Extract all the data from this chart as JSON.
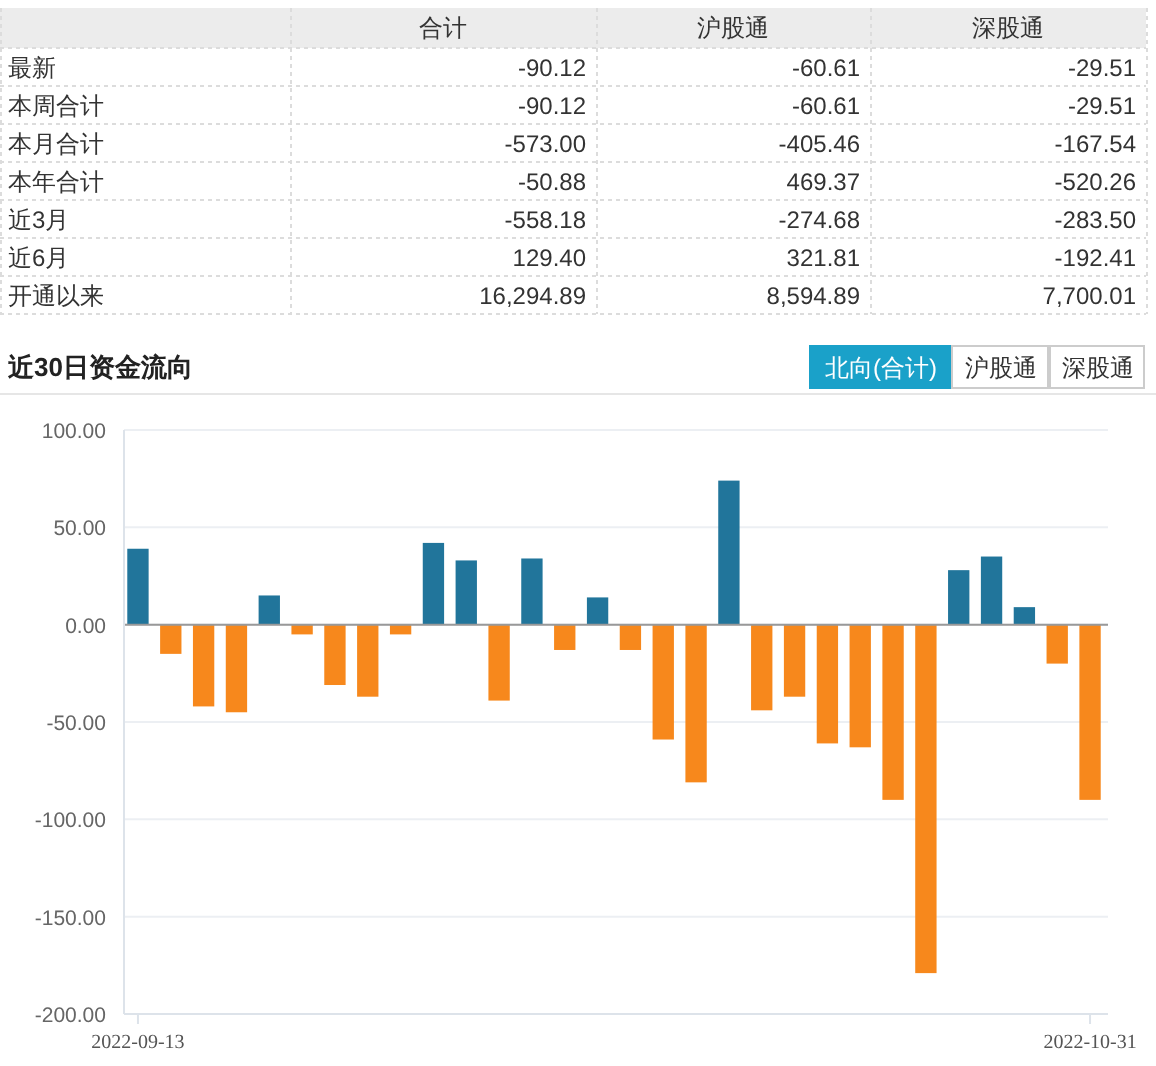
{
  "chart_data": [
    {
      "type": "other",
      "categories": [
        "最新",
        "本周合计",
        "本月合计",
        "本年合计",
        "近3月",
        "近6月",
        "开通以来"
      ],
      "series": [
        {
          "name": "合计",
          "values": [
            -90.12,
            -90.12,
            -573.0,
            -50.88,
            -558.18,
            129.4,
            16294.89
          ],
          "value_labels": [
            "-90.12",
            "-90.12",
            "-573.00",
            "-50.88",
            "-558.18",
            "129.40",
            "16,294.89"
          ]
        },
        {
          "name": "沪股通",
          "values": [
            -60.61,
            -60.61,
            -405.46,
            469.37,
            -274.68,
            321.81,
            8594.89
          ],
          "value_labels": [
            "-60.61",
            "-60.61",
            "-405.46",
            "469.37",
            "-274.68",
            "321.81",
            "8,594.89"
          ]
        },
        {
          "name": "深股通",
          "values": [
            -29.51,
            -29.51,
            -167.54,
            -520.26,
            -283.5,
            -192.41,
            7700.01
          ],
          "value_labels": [
            "-29.51",
            "-29.51",
            "-167.54",
            "-520.26",
            "-283.50",
            "-192.41",
            "7,700.01"
          ]
        }
      ]
    },
    {
      "type": "bar",
      "title": "近30日资金流向",
      "annotations": [
        "北向(合计)",
        "沪股通",
        "深股通"
      ],
      "categories": [
        "2022-09-13",
        null,
        null,
        null,
        null,
        null,
        null,
        null,
        null,
        null,
        null,
        null,
        null,
        null,
        null,
        null,
        null,
        null,
        null,
        null,
        null,
        null,
        null,
        null,
        null,
        null,
        null,
        null,
        null,
        "2022-10-31"
      ],
      "values": [
        39,
        -15,
        -42,
        -45,
        15,
        -5,
        -31,
        -37,
        -5,
        42,
        33,
        -39,
        34,
        -13,
        14,
        -13,
        -59,
        -81,
        74,
        -44,
        -37,
        -61,
        -63,
        -90,
        -179,
        28,
        35,
        9,
        -20,
        -90
      ],
      "colors": [
        "#21759b",
        "#f7881c",
        "#f7881c",
        "#f7881c",
        "#21759b",
        "#f7881c",
        "#f7881c",
        "#f7881c",
        "#f7881c",
        "#21759b",
        "#21759b",
        "#f7881c",
        "#21759b",
        "#f7881c",
        "#21759b",
        "#f7881c",
        "#f7881c",
        "#f7881c",
        "#21759b",
        "#f7881c",
        "#f7881c",
        "#f7881c",
        "#f7881c",
        "#f7881c",
        "#f7881c",
        "#21759b",
        "#21759b",
        "#21759b",
        "#f7881c",
        "#f7881c"
      ],
      "ylim": [
        -200,
        100
      ],
      "yticks": [
        {
          "value": 100,
          "label": "100.00"
        },
        {
          "value": 50,
          "label": "50.00"
        },
        {
          "value": 0,
          "label": "0.00"
        },
        {
          "value": -50,
          "label": "-50.00"
        },
        {
          "value": -100,
          "label": "-100.00"
        },
        {
          "value": -150,
          "label": "-150.00"
        },
        {
          "value": -200,
          "label": "-200.00"
        }
      ],
      "grid": "y"
    }
  ]
}
